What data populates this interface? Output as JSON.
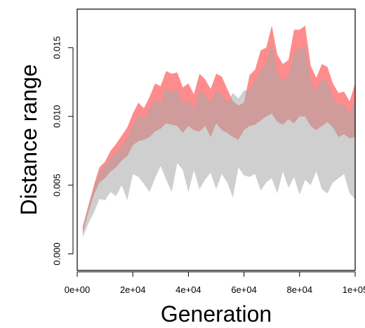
{
  "chart_data": {
    "type": "area",
    "xlabel": "Generation",
    "ylabel": "Distance range",
    "xlim": [
      0,
      100000
    ],
    "ylim": [
      -0.0012,
      0.0178
    ],
    "x_ticks": [
      0,
      20000,
      40000,
      60000,
      80000,
      100000
    ],
    "x_tick_labels": [
      "0e+00",
      "2e+04",
      "4e+04",
      "6e+04",
      "8e+04",
      "1e+05"
    ],
    "y_ticks": [
      0,
      0.005,
      0.01,
      0.015
    ],
    "y_tick_labels": [
      "0.000",
      "0.005",
      "0.010",
      "0.015"
    ],
    "grid": false,
    "x": [
      2000,
      4000,
      6000,
      8000,
      10000,
      12000,
      14000,
      16000,
      18000,
      20000,
      22000,
      24000,
      26000,
      28000,
      30000,
      32000,
      34000,
      36000,
      38000,
      40000,
      42000,
      44000,
      46000,
      48000,
      50000,
      52000,
      54000,
      56000,
      58000,
      60000,
      62000,
      64000,
      66000,
      68000,
      70000,
      72000,
      74000,
      76000,
      78000,
      80000,
      82000,
      84000,
      86000,
      88000,
      90000,
      92000,
      94000,
      96000,
      98000,
      100000
    ],
    "series": [
      {
        "color": "#ff7f7f",
        "opacity": 0.9,
        "upper": [
          0.002,
          0.0035,
          0.005,
          0.0063,
          0.0067,
          0.0075,
          0.008,
          0.0086,
          0.0092,
          0.0102,
          0.011,
          0.0106,
          0.0114,
          0.0124,
          0.0122,
          0.0133,
          0.0131,
          0.0132,
          0.0121,
          0.0124,
          0.0116,
          0.0131,
          0.0127,
          0.012,
          0.0131,
          0.0129,
          0.012,
          0.0111,
          0.0108,
          0.011,
          0.013,
          0.0134,
          0.0148,
          0.015,
          0.0166,
          0.0145,
          0.0138,
          0.0141,
          0.0163,
          0.0163,
          0.0166,
          0.0137,
          0.0128,
          0.0138,
          0.0136,
          0.0124,
          0.0117,
          0.0118,
          0.0111,
          0.0124
        ],
        "lower": [
          0.0015,
          0.003,
          0.0043,
          0.0052,
          0.0055,
          0.006,
          0.0063,
          0.0068,
          0.0071,
          0.0079,
          0.0082,
          0.0083,
          0.0085,
          0.0089,
          0.0091,
          0.0095,
          0.0094,
          0.0093,
          0.0088,
          0.0093,
          0.009,
          0.0089,
          0.0093,
          0.0085,
          0.0095,
          0.009,
          0.0088,
          0.0085,
          0.0083,
          0.009,
          0.0093,
          0.0094,
          0.0097,
          0.01,
          0.0102,
          0.0096,
          0.0094,
          0.0098,
          0.0095,
          0.01,
          0.01,
          0.0093,
          0.009,
          0.0093,
          0.0096,
          0.0092,
          0.0085,
          0.0087,
          0.0084,
          0.0085
        ]
      },
      {
        "color": "#a8a8a8",
        "opacity": 0.55,
        "upper": [
          0.002,
          0.0033,
          0.0048,
          0.006,
          0.0064,
          0.007,
          0.0074,
          0.0079,
          0.0084,
          0.0093,
          0.0101,
          0.0098,
          0.0106,
          0.0112,
          0.011,
          0.0121,
          0.0118,
          0.012,
          0.011,
          0.0112,
          0.0105,
          0.0119,
          0.0116,
          0.011,
          0.0119,
          0.0116,
          0.011,
          0.0117,
          0.0113,
          0.0119,
          0.0119,
          0.0126,
          0.0134,
          0.0138,
          0.0155,
          0.0132,
          0.0125,
          0.013,
          0.0147,
          0.0149,
          0.0152,
          0.0126,
          0.0118,
          0.0128,
          0.0125,
          0.0114,
          0.0108,
          0.0109,
          0.0102,
          0.0113
        ],
        "lower": [
          0.0012,
          0.0022,
          0.003,
          0.004,
          0.0039,
          0.0045,
          0.0042,
          0.005,
          0.0039,
          0.0058,
          0.0056,
          0.0051,
          0.0045,
          0.0055,
          0.0064,
          0.0054,
          0.0045,
          0.0066,
          0.0061,
          0.0045,
          0.0061,
          0.0047,
          0.0054,
          0.0059,
          0.0047,
          0.0058,
          0.0052,
          0.0041,
          0.0063,
          0.0057,
          0.0056,
          0.0058,
          0.0046,
          0.0052,
          0.0055,
          0.0044,
          0.006,
          0.0048,
          0.0056,
          0.0043,
          0.0054,
          0.005,
          0.006,
          0.0047,
          0.0044,
          0.0052,
          0.0055,
          0.0058,
          0.0044,
          0.004
        ]
      }
    ]
  }
}
